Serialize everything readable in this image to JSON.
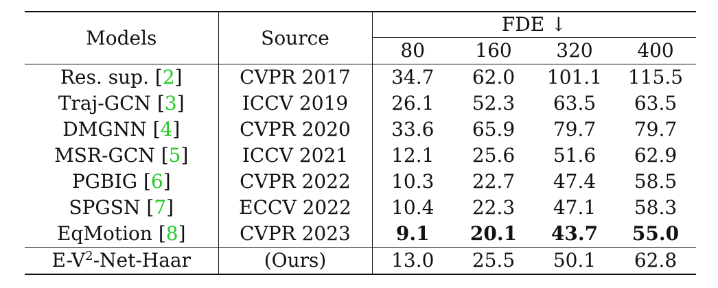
{
  "header": {
    "models": "Models",
    "source": "Source",
    "metric": "FDE",
    "metric_arrow": "↓",
    "horizons": [
      "80",
      "160",
      "320",
      "400"
    ]
  },
  "rows": [
    {
      "name": "Res. sup.",
      "ref": "2",
      "source": "CVPR 2017",
      "values": [
        "34.7",
        "62.0",
        "101.1",
        "115.5"
      ]
    },
    {
      "name": "Traj-GCN",
      "ref": "3",
      "source": "ICCV 2019",
      "values": [
        "26.1",
        "52.3",
        "63.5",
        "63.5"
      ]
    },
    {
      "name": "DMGNN",
      "ref": "4",
      "source": "CVPR 2020",
      "values": [
        "33.6",
        "65.9",
        "79.7",
        "79.7"
      ]
    },
    {
      "name": "MSR-GCN",
      "ref": "5",
      "source": "ICCV 2021",
      "values": [
        "12.1",
        "25.6",
        "51.6",
        "62.9"
      ]
    },
    {
      "name": "PGBIG",
      "ref": "6",
      "source": "CVPR 2022",
      "values": [
        "10.3",
        "22.7",
        "47.4",
        "58.5"
      ]
    },
    {
      "name": "SPGSN",
      "ref": "7",
      "source": "ECCV 2022",
      "values": [
        "10.4",
        "22.3",
        "47.1",
        "58.3"
      ]
    },
    {
      "name": "EqMotion",
      "ref": "8",
      "source": "CVPR 2023",
      "values": [
        "9.1",
        "20.1",
        "43.7",
        "55.0"
      ]
    }
  ],
  "ours": {
    "name_prefix": "E-V",
    "name_sup": "2",
    "name_suffix": "-Net-Haar",
    "source": "(Ours)",
    "values": [
      "13.0",
      "25.5",
      "50.1",
      "62.8"
    ]
  },
  "colors": {
    "reference_link": "#22cc22",
    "text": "#111111",
    "rules": "#111111"
  }
}
